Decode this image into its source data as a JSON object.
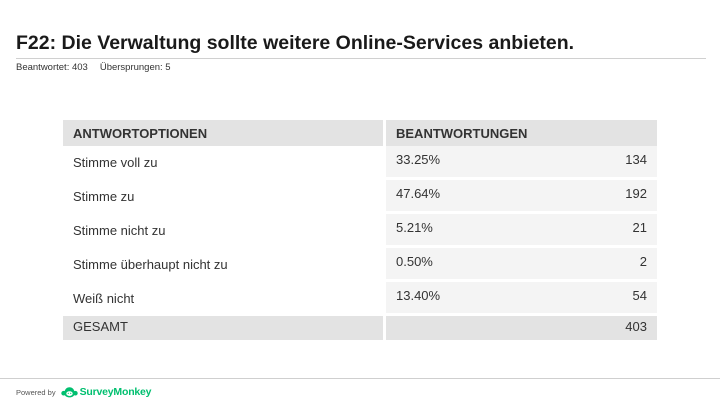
{
  "question": {
    "title": "F22: Die Verwaltung sollte weitere Online-Services anbieten."
  },
  "stats": {
    "answered": "Beantwortet: 403",
    "skipped": "Übersprungen: 5"
  },
  "table": {
    "header_options": "ANTWORTOPTIONEN",
    "header_responses": "BEANTWORTUNGEN",
    "rows": [
      {
        "option": "Stimme voll zu",
        "percent": "33.25%",
        "count": "134"
      },
      {
        "option": "Stimme zu",
        "percent": "47.64%",
        "count": "192"
      },
      {
        "option": "Stimme nicht zu",
        "percent": "5.21%",
        "count": "21"
      },
      {
        "option": "Stimme überhaupt nicht zu",
        "percent": "0.50%",
        "count": "2"
      },
      {
        "option": "Weiß nicht",
        "percent": "13.40%",
        "count": "54"
      }
    ],
    "total_label": "GESAMT",
    "total_count": "403"
  },
  "footer": {
    "powered_by": "Powered by",
    "brand": "SurveyMonkey",
    "brand_color": "#00bf6f",
    "logo_icon": "surveymonkey-logo-icon"
  }
}
